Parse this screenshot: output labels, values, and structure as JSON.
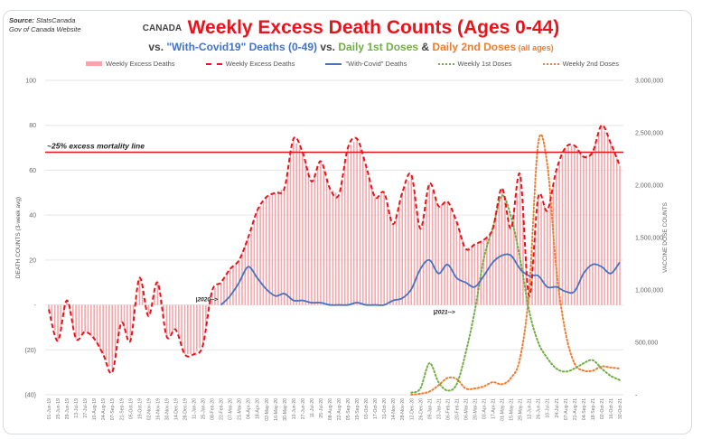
{
  "source": {
    "label": "Source:",
    "text": "StatsCanada",
    "line2": "Gov of Canada Website"
  },
  "title": {
    "country": "CANADA",
    "main": "Weekly Excess Death Counts (Ages 0-44)"
  },
  "subtitle": {
    "part1": "vs. ",
    "covid": "\"With-Covid19\" Deaths (0-49)",
    "part2": " vs. ",
    "dose1": "Daily 1st Doses",
    "amp": " & ",
    "dose2": "Daily 2nd Doses",
    "allages": " (all ages)"
  },
  "colors": {
    "bars": "#f4a6aa",
    "excess_line": "#e8141b",
    "covid_line": "#4472c4",
    "dose1": "#70ad47",
    "dose2": "#ed7d31",
    "threshold": "#e8141b"
  },
  "chart_data": {
    "type": "bar",
    "title": "CANADA Weekly Excess Death Counts (Ages 0-44)",
    "subtitle": "vs. \"With-Covid19\" Deaths (0-49) vs. Daily 1st Doses & Daily 2nd Doses (all ages)",
    "ylabel": "DEATH COUNTS (3-week avg)",
    "y2label": "VACCINE DOSE COUNTS",
    "ylim": [
      -40,
      100
    ],
    "y2lim": [
      0,
      3000000
    ],
    "yticks": [
      "(40)",
      "(20)",
      "-",
      "20",
      "40",
      "60",
      "80",
      "100"
    ],
    "yticks_values": [
      -40,
      -20,
      0,
      20,
      40,
      60,
      80,
      100
    ],
    "y2ticks": [
      "-",
      "500,000",
      "1,000,000",
      "1,500,000",
      "2,000,000",
      "2,500,000",
      "3,000,000"
    ],
    "y2ticks_values": [
      0,
      500000,
      1000000,
      1500000,
      2000000,
      2500000,
      3000000
    ],
    "grid": true,
    "legend_position": "top",
    "legend": [
      "Weekly Excess Deaths",
      "Weekly Excess Deaths",
      "\"With-Covid\" Deaths",
      "Weekly 1st Doses",
      "Weekly 2nd Doses"
    ],
    "x_labels": [
      "01-Jun-19",
      "15-Jun-19",
      "29-Jun-19",
      "13-Jul-19",
      "27-Jul-19",
      "10-Aug-19",
      "24-Aug-19",
      "07-Sep-19",
      "21-Sep-19",
      "05-Oct-19",
      "19-Oct-19",
      "02-Nov-19",
      "16-Nov-19",
      "30-Nov-19",
      "14-Dec-19",
      "28-Dec-19",
      "11-Jan-20",
      "25-Jan-20",
      "08-Feb-20",
      "22-Feb-20",
      "07-Mar-20",
      "21-Mar-20",
      "04-Apr-20",
      "18-Apr-20",
      "02-May-20",
      "16-May-20",
      "30-May-20",
      "13-Jun-20",
      "27-Jun-20",
      "11-Jul-20",
      "25-Jul-20",
      "08-Aug-20",
      "22-Aug-20",
      "05-Sep-20",
      "19-Sep-20",
      "03-Oct-20",
      "17-Oct-20",
      "31-Oct-20",
      "14-Nov-20",
      "28-Nov-20",
      "12-Dec-20",
      "26-Dec-20",
      "09-Jan-21",
      "23-Jan-21",
      "06-Feb-21",
      "20-Feb-21",
      "06-Mar-21",
      "20-Mar-21",
      "03-Apr-21",
      "17-Apr-21",
      "01-May-21",
      "15-May-21",
      "29-May-21",
      "12-Jun-21",
      "26-Jun-21",
      "10-Jul-21",
      "24-Jul-21",
      "07-Aug-21",
      "21-Aug-21",
      "04-Sep-21",
      "18-Sep-21",
      "02-Oct-21",
      "16-Oct-21",
      "30-Oct-21"
    ],
    "annotations": [
      {
        "text": "~25% excess mortality line",
        "y": 68
      },
      {
        "text": "|2020-->",
        "x": "21-Mar-20"
      },
      {
        "text": "|2021-->",
        "x": "09-Jan-21"
      }
    ],
    "series": [
      {
        "name": "Weekly Excess Deaths",
        "type": "bar",
        "axis": "left",
        "values": [
          -2,
          -16,
          2,
          -15,
          -12,
          -15,
          -22,
          -30,
          -8,
          -16,
          12,
          -5,
          10,
          -14,
          -11,
          -22,
          -22,
          -18,
          6,
          10,
          16,
          20,
          30,
          42,
          48,
          50,
          52,
          74,
          68,
          55,
          64,
          52,
          49,
          70,
          74,
          62,
          48,
          50,
          36,
          50,
          58,
          34,
          54,
          44,
          46,
          37,
          25,
          27,
          29,
          34,
          52,
          34,
          58,
          4,
          48,
          42,
          60,
          70,
          71,
          66,
          68,
          80,
          72,
          62
        ]
      },
      {
        "name": "\"With-Covid\" Deaths",
        "type": "line",
        "axis": "left",
        "values": [
          null,
          null,
          null,
          null,
          null,
          null,
          null,
          null,
          null,
          null,
          null,
          null,
          null,
          null,
          null,
          null,
          null,
          null,
          null,
          0,
          4,
          10,
          17,
          12,
          7,
          4,
          5,
          2,
          2,
          1,
          1,
          0,
          0,
          0,
          1,
          0,
          0,
          0,
          2,
          3,
          7,
          16,
          20,
          14,
          18,
          12,
          10,
          8,
          13,
          19,
          22,
          22,
          16,
          13,
          13,
          8,
          8,
          6,
          6,
          14,
          18,
          17,
          14,
          19
        ]
      },
      {
        "name": "Weekly 1st Doses",
        "type": "line",
        "axis": "right",
        "values": [
          null,
          null,
          null,
          null,
          null,
          null,
          null,
          null,
          null,
          null,
          null,
          null,
          null,
          null,
          null,
          null,
          null,
          null,
          null,
          null,
          null,
          null,
          null,
          null,
          null,
          null,
          null,
          null,
          null,
          null,
          null,
          null,
          null,
          null,
          null,
          null,
          null,
          null,
          null,
          null,
          20000,
          60000,
          300000,
          120000,
          40000,
          100000,
          400000,
          800000,
          1300000,
          1600000,
          1900000,
          1700000,
          1300000,
          800000,
          500000,
          350000,
          250000,
          220000,
          250000,
          300000,
          330000,
          250000,
          180000,
          140000
        ]
      },
      {
        "name": "Weekly 2nd Doses",
        "type": "line",
        "axis": "right",
        "values": [
          null,
          null,
          null,
          null,
          null,
          null,
          null,
          null,
          null,
          null,
          null,
          null,
          null,
          null,
          null,
          null,
          null,
          null,
          null,
          null,
          null,
          null,
          null,
          null,
          null,
          null,
          null,
          null,
          null,
          null,
          null,
          null,
          null,
          null,
          null,
          null,
          null,
          null,
          null,
          null,
          0,
          10000,
          30000,
          90000,
          160000,
          150000,
          60000,
          60000,
          80000,
          120000,
          100000,
          160000,
          350000,
          1000000,
          2400000,
          2200000,
          1200000,
          600000,
          300000,
          230000,
          230000,
          270000,
          260000,
          250000
        ]
      }
    ]
  }
}
